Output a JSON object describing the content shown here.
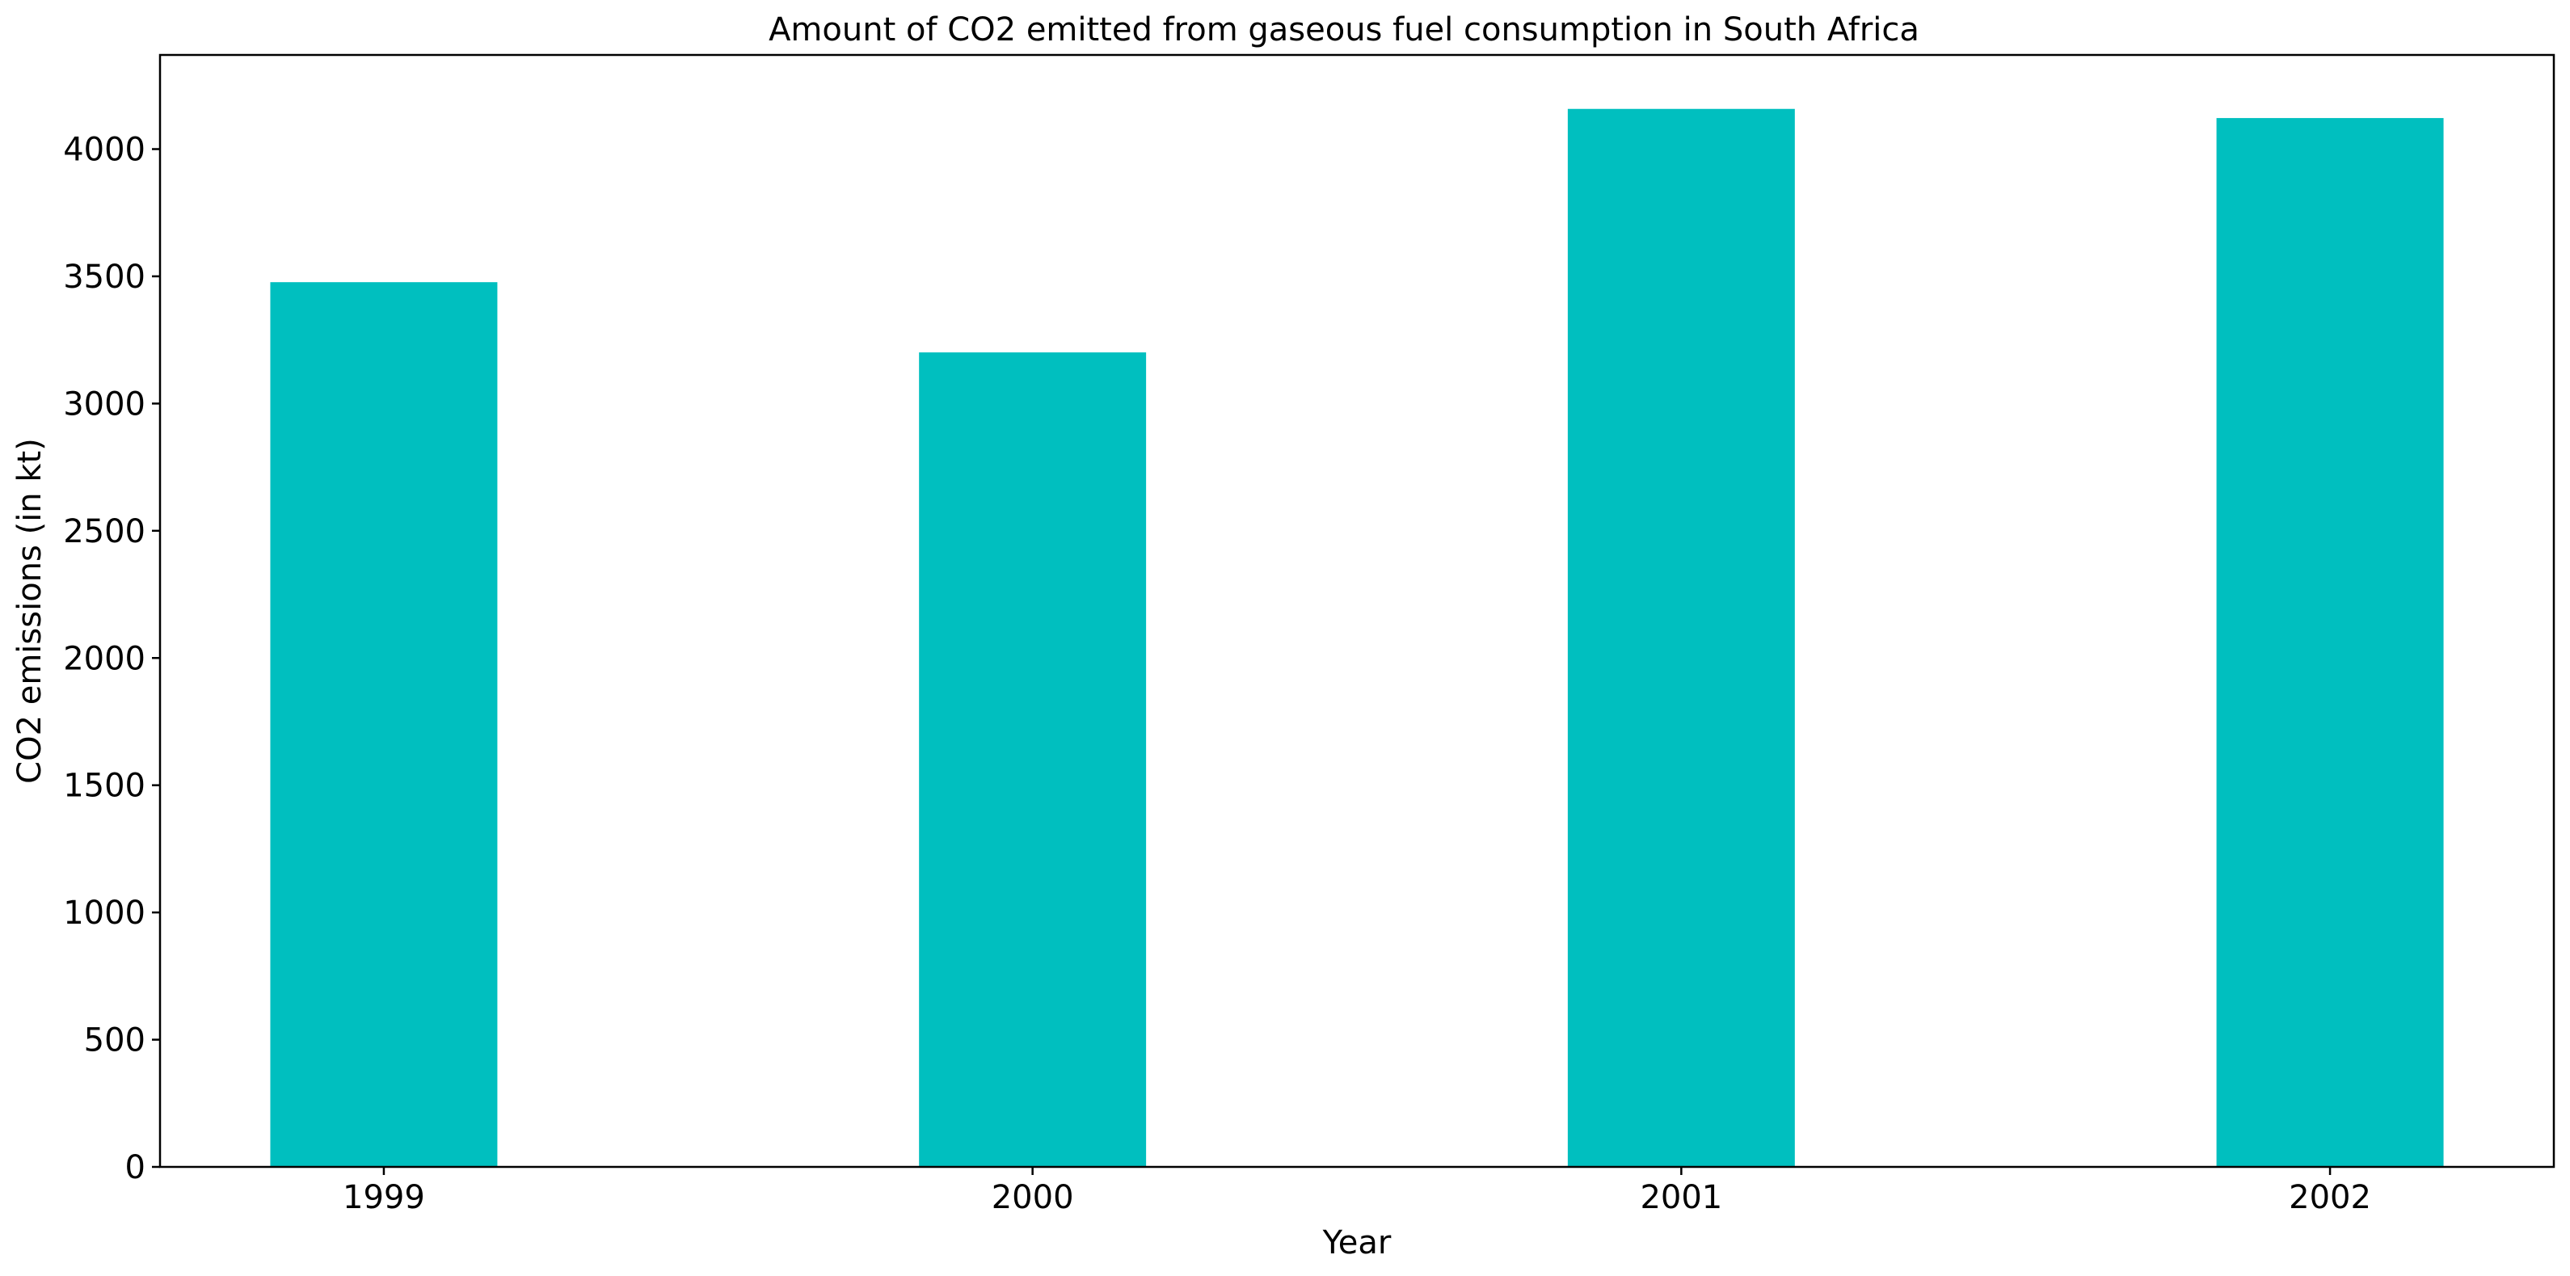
{
  "chart_data": {
    "type": "bar",
    "title": "Amount of CO2 emitted from gaseous fuel consumption in South Africa",
    "xlabel": "Year",
    "ylabel": "CO2 emissions (in kt)",
    "categories": [
      "1999",
      "2000",
      "2001",
      "2002"
    ],
    "values": [
      3477,
      3201,
      4158,
      4122
    ],
    "ylim": [
      0,
      4370
    ],
    "yticks": [
      0,
      500,
      1000,
      1500,
      2000,
      2500,
      3000,
      3500,
      4000
    ],
    "ytick_labels": [
      "0",
      "500",
      "1000",
      "1500",
      "2000",
      "2500",
      "3000",
      "3500",
      "4000"
    ],
    "bar_color": "#00bfbf",
    "grid": false,
    "legend": "none"
  }
}
